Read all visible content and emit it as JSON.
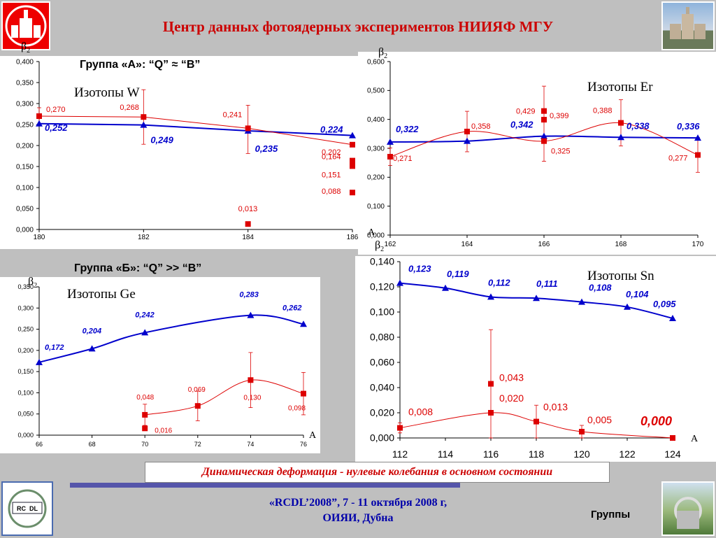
{
  "page": {
    "title": "Центр данных фотоядерных экспериментов НИИЯФ МГУ",
    "footer_caption": "Динамическая деформация - нулевые колебания в основном состоянии",
    "conference_line1": "«RCDL’2008”,  7 - 11 октября 2008 г,",
    "conference_line2": "ОИЯИ, Дубна",
    "section_label": "Группы",
    "group_a_label": "Группа «А»: “Q” ≈  “B”",
    "group_b_label": "Группа «Б»: “Q” >> “B”",
    "beta_symbol": "β",
    "beta_index": "2",
    "axis_symbol": "A",
    "logo_badge_text_1": "RC",
    "logo_badge_text_2": "DL"
  },
  "colors": {
    "blue": "#0000cc",
    "red": "#dd0000",
    "title": "#cc0000",
    "footer_bar": "#5555aa"
  },
  "chart_data": [
    {
      "id": "w",
      "type": "line",
      "title": "Изотопы W",
      "xlabel": "",
      "ylabel": "β2",
      "xlim": [
        180,
        186
      ],
      "ylim": [
        0,
        0.4
      ],
      "xticks": [
        "180",
        "182",
        "184",
        "186"
      ],
      "yticks": [
        "0,000",
        "0,050",
        "0,100",
        "0,150",
        "0,200",
        "0,250",
        "0,300",
        "0,350",
        "0,400"
      ],
      "grid": false,
      "series": [
        {
          "color": "blue",
          "marker": "triangle",
          "x": [
            180,
            182,
            184,
            186
          ],
          "y": [
            0.252,
            0.249,
            0.235,
            0.224
          ],
          "labels": [
            "0,252",
            "0,249",
            "0,235",
            "0,224"
          ]
        },
        {
          "color": "red",
          "marker": "square",
          "x": [
            180,
            182,
            184,
            186
          ],
          "y": [
            0.27,
            0.268,
            0.241,
            0.202
          ],
          "labels": [
            "0,270",
            "0,268",
            "0,241",
            "0,202"
          ]
        },
        {
          "color": "red",
          "marker": "square",
          "x": [
            184,
            186,
            186,
            186
          ],
          "y": [
            0.013,
            0.164,
            0.151,
            0.088
          ],
          "labels": [
            "0,013",
            "0,164",
            "0,151",
            "0,088"
          ]
        }
      ]
    },
    {
      "id": "er",
      "type": "line",
      "title": "Изотопы Er",
      "xlabel": "A",
      "ylabel": "β2",
      "xlim": [
        162,
        170
      ],
      "ylim": [
        0,
        0.6
      ],
      "xticks": [
        "162",
        "164",
        "166",
        "168",
        "170"
      ],
      "yticks": [
        "0,000",
        "0,100",
        "0,200",
        "0,300",
        "0,400",
        "0,500",
        "0,600"
      ],
      "grid": false,
      "series": [
        {
          "color": "blue",
          "marker": "triangle",
          "x": [
            162,
            164,
            166,
            168,
            170
          ],
          "y": [
            0.322,
            0.325,
            0.342,
            0.338,
            0.336
          ],
          "labels": [
            "0,322",
            "",
            "0,342",
            "0,338",
            "0,336"
          ]
        },
        {
          "color": "red",
          "marker": "square",
          "x": [
            162,
            164,
            166,
            168,
            170
          ],
          "y": [
            0.271,
            0.358,
            0.325,
            0.388,
            0.277
          ],
          "labels": [
            "0,271",
            "0,358",
            "0,325",
            "0,388",
            "0,277"
          ]
        },
        {
          "color": "red",
          "marker": "square",
          "x": [
            166,
            166
          ],
          "y": [
            0.429,
            0.399
          ],
          "labels": [
            "0,429",
            "0,399"
          ]
        }
      ]
    },
    {
      "id": "ge",
      "type": "line",
      "title": "Изотопы Ge",
      "xlabel": "A",
      "ylabel": "β2",
      "xlim": [
        66,
        76
      ],
      "ylim": [
        0,
        0.35
      ],
      "xticks": [
        "66",
        "68",
        "70",
        "72",
        "74",
        "76"
      ],
      "yticks": [
        "0,000",
        "0,050",
        "0,100",
        "0,150",
        "0,200",
        "0,250",
        "0,300",
        "0,350"
      ],
      "grid": false,
      "series": [
        {
          "color": "blue",
          "marker": "triangle",
          "x": [
            66,
            68,
            70,
            74,
            76
          ],
          "y": [
            0.172,
            0.204,
            0.242,
            0.283,
            0.262
          ],
          "labels": [
            "0,172",
            "0,204",
            "0,242",
            "0,283",
            "0,262"
          ]
        },
        {
          "color": "red",
          "marker": "square",
          "x": [
            70,
            72,
            74,
            76
          ],
          "y": [
            0.048,
            0.069,
            0.13,
            0.098
          ],
          "labels": [
            "0,048",
            "0,069",
            "0,130",
            "0,098"
          ]
        },
        {
          "color": "red",
          "marker": "square",
          "x": [
            70
          ],
          "y": [
            0.016
          ],
          "labels": [
            "0,016"
          ]
        }
      ]
    },
    {
      "id": "sn",
      "type": "line",
      "title": "Изотопы Sn",
      "xlabel": "A",
      "ylabel": "β2",
      "xlim": [
        112,
        124
      ],
      "ylim": [
        0,
        0.14
      ],
      "xticks": [
        "112",
        "114",
        "116",
        "118",
        "120",
        "122",
        "124"
      ],
      "yticks": [
        "0,000",
        "0,020",
        "0,040",
        "0,060",
        "0,080",
        "0,100",
        "0,120",
        "0,140"
      ],
      "grid": false,
      "series": [
        {
          "color": "blue",
          "marker": "triangle",
          "x": [
            112,
            114,
            116,
            118,
            120,
            122,
            124
          ],
          "y": [
            0.123,
            0.119,
            0.112,
            0.111,
            0.108,
            0.104,
            0.095
          ],
          "labels": [
            "0,123",
            "0,119",
            "0,112",
            "0,111",
            "0,108",
            "0,104",
            "0,095"
          ]
        },
        {
          "color": "red",
          "marker": "square",
          "x": [
            112,
            116,
            118,
            120,
            124
          ],
          "y": [
            0.008,
            0.02,
            0.013,
            0.005,
            0.0
          ],
          "labels": [
            "0,008",
            "0,020",
            "0,013",
            "0,005",
            "0,000"
          ]
        },
        {
          "color": "red",
          "marker": "square",
          "x": [
            116
          ],
          "y": [
            0.043
          ],
          "labels": [
            "0,043"
          ]
        }
      ]
    }
  ]
}
